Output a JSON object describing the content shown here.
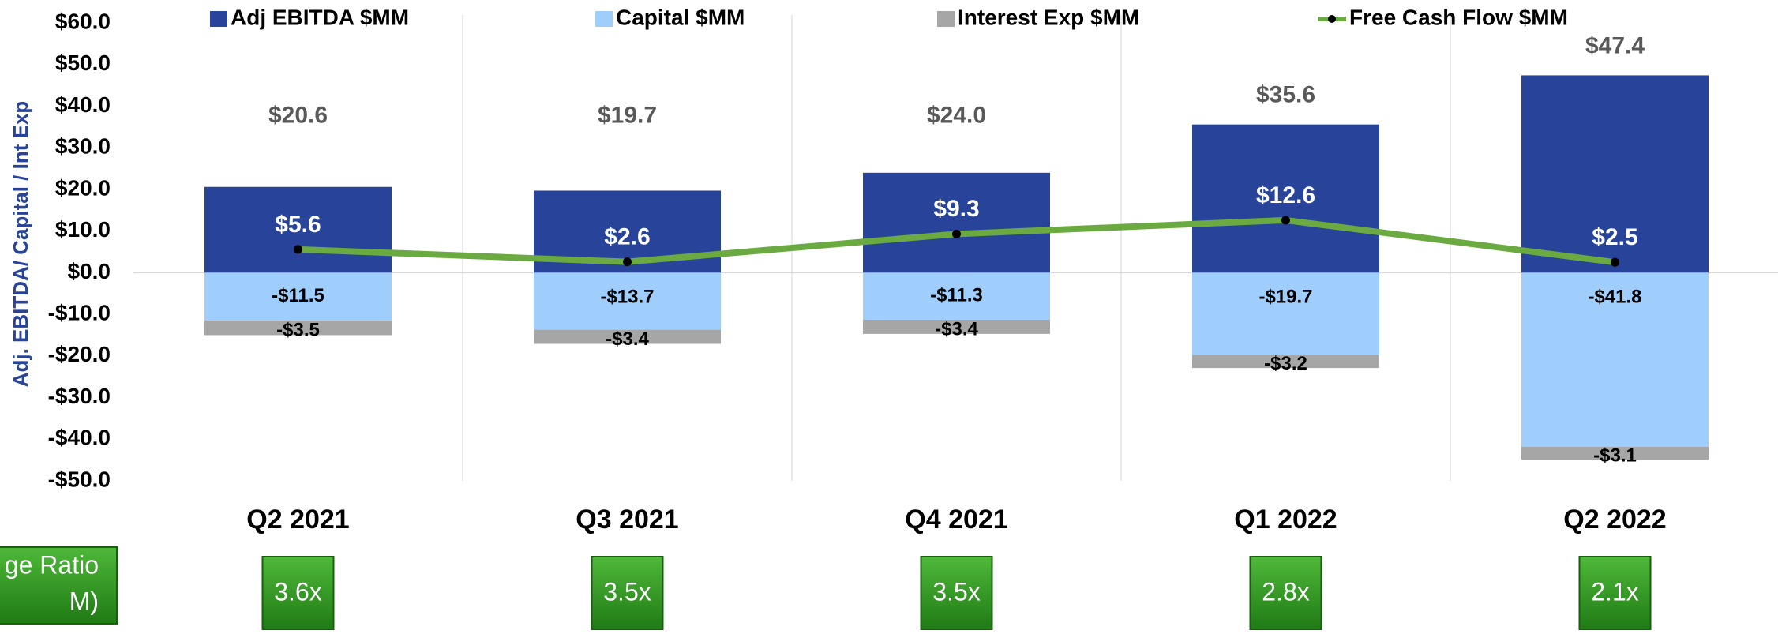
{
  "chart_data": {
    "type": "bar",
    "y_axis_label": "Adj. EBITDA/ Capital / Int Exp",
    "categories": [
      "Q2 2021",
      "Q3 2021",
      "Q4 2021",
      "Q1 2022",
      "Q2 2022"
    ],
    "series": [
      {
        "name": "Adj EBITDA $MM",
        "color": "#27449a",
        "values": [
          20.6,
          19.7,
          24.0,
          35.6,
          47.4
        ],
        "value_labels": [
          "$20.6",
          "$19.7",
          "$24.0",
          "$35.6",
          "$47.4"
        ]
      },
      {
        "name": "Capital $MM",
        "color": "#9fcdfc",
        "values": [
          -11.5,
          -13.7,
          -11.3,
          -19.7,
          -41.8
        ],
        "value_labels": [
          "-$11.5",
          "-$13.7",
          "-$11.3",
          "-$19.7",
          "-$41.8"
        ]
      },
      {
        "name": "Interest Exp $MM",
        "color": "#a6a6a6",
        "values": [
          -3.5,
          -3.4,
          -3.4,
          -3.2,
          -3.1
        ],
        "value_labels": [
          "-$3.5",
          "-$3.4",
          "-$3.4",
          "-$3.2",
          "-$3.1"
        ]
      },
      {
        "name": "Free Cash Flow $MM",
        "type": "line",
        "color": "#6aaa40",
        "values": [
          5.6,
          2.6,
          9.3,
          12.6,
          2.5
        ],
        "value_labels": [
          "$5.6",
          "$2.6",
          "$9.3",
          "$12.6",
          "$2.5"
        ]
      }
    ],
    "ylim": [
      -50,
      60
    ],
    "yticks": [
      {
        "value": -50,
        "label": "-$50.0"
      },
      {
        "value": -40,
        "label": "-$40.0"
      },
      {
        "value": -30,
        "label": "-$30.0"
      },
      {
        "value": -20,
        "label": "-$20.0"
      },
      {
        "value": -10,
        "label": "-$10.0"
      },
      {
        "value": 0,
        "label": "$0.0"
      },
      {
        "value": 10,
        "label": "$10.0"
      },
      {
        "value": 20,
        "label": "$20.0"
      },
      {
        "value": 30,
        "label": "$30.0"
      },
      {
        "value": 40,
        "label": "$40.0"
      },
      {
        "value": 50,
        "label": "$50.0"
      },
      {
        "value": 60,
        "label": "$60.0"
      }
    ],
    "grid": true,
    "leverage_label": [
      "ge Ratio",
      "M)"
    ],
    "leverage_ratios": [
      "3.6x",
      "3.5x",
      "3.5x",
      "2.8x",
      "2.1x"
    ]
  }
}
